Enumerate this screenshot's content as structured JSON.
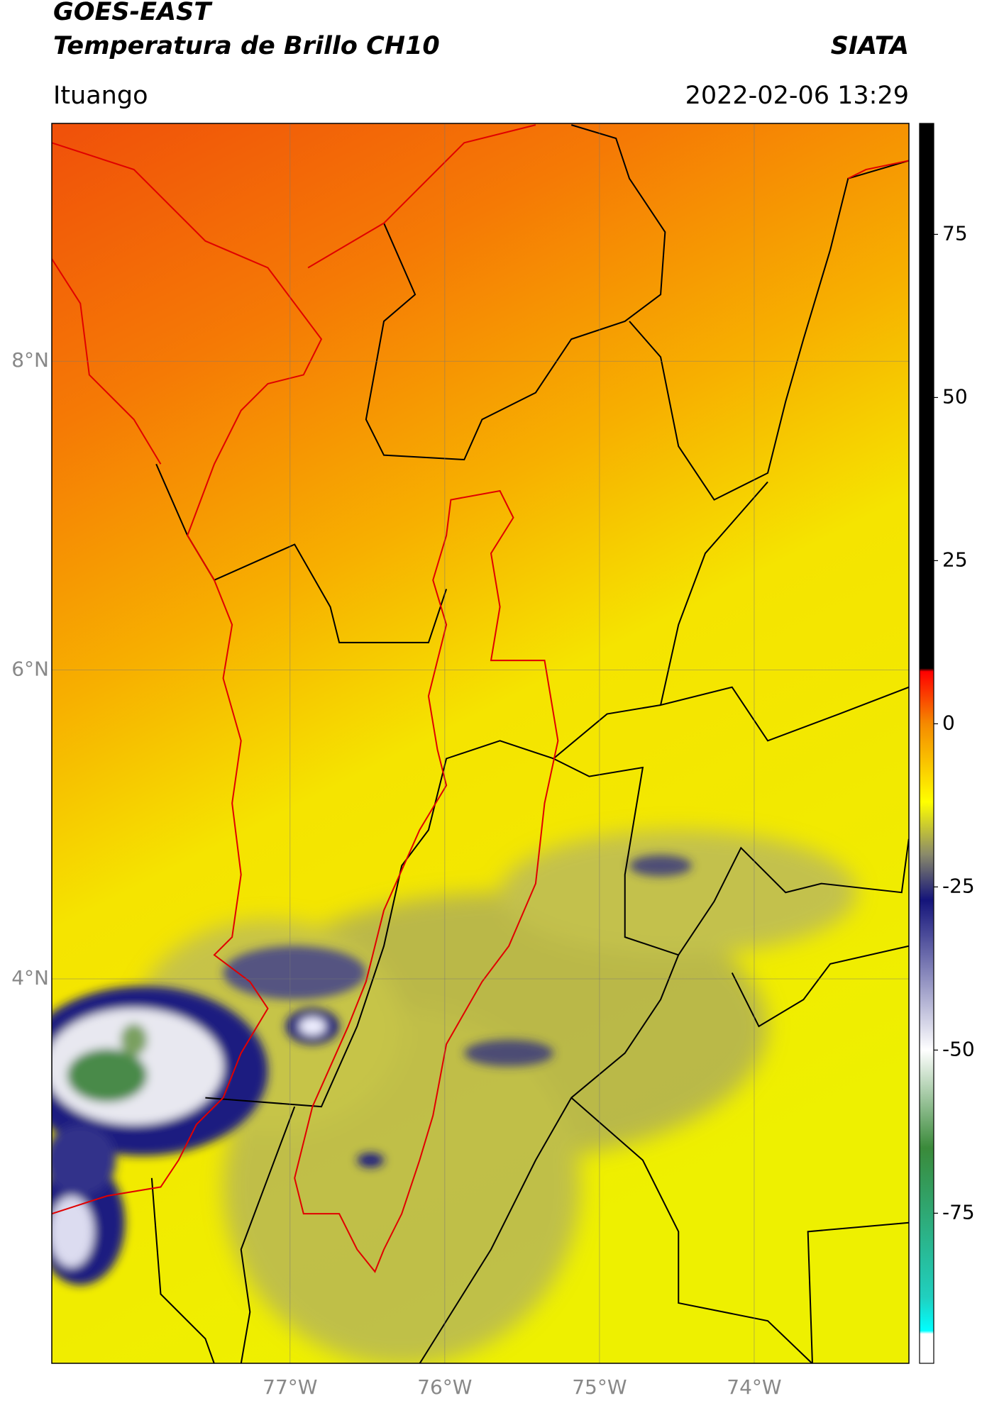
{
  "header": {
    "title": "GOES-EAST",
    "subtitle": "Temperatura de Brillo CH10",
    "source": "SIATA",
    "location": "Ituango",
    "datetime": "2022-02-06 13:29"
  },
  "map": {
    "xlim": [
      -78.54,
      -73.0
    ],
    "ylim": [
      1.51,
      9.54
    ],
    "grid": true,
    "xticks": [
      {
        "value": -77,
        "label": "77°W"
      },
      {
        "value": -76,
        "label": "76°W"
      },
      {
        "value": -75,
        "label": "75°W"
      },
      {
        "value": -74,
        "label": "74°W"
      }
    ],
    "yticks": [
      {
        "value": 8,
        "label": "8°N"
      },
      {
        "value": 6,
        "label": "6°N"
      },
      {
        "value": 4,
        "label": "4°N"
      }
    ]
  },
  "colorbar": {
    "lim": [
      -98,
      92
    ],
    "ticks": [
      75,
      50,
      25,
      0,
      -25,
      -50,
      -75
    ],
    "stops": [
      {
        "value": 92,
        "color": "#000000"
      },
      {
        "value": 8.5,
        "color": "#000000"
      },
      {
        "value": 8,
        "color": "#ff0000"
      },
      {
        "value": 0,
        "color": "#f58a00"
      },
      {
        "value": -12,
        "color": "#ffff00"
      },
      {
        "value": -20,
        "color": "#8a8a6a"
      },
      {
        "value": -27,
        "color": "#14147a"
      },
      {
        "value": -50,
        "color": "#ffffff"
      },
      {
        "value": -65,
        "color": "#3a8a3a"
      },
      {
        "value": -88,
        "color": "#20d0c0"
      },
      {
        "value": -93,
        "color": "#00ffff"
      },
      {
        "value": -93.5,
        "color": "#ffffff"
      },
      {
        "value": -98,
        "color": "#ffffff"
      }
    ]
  }
}
